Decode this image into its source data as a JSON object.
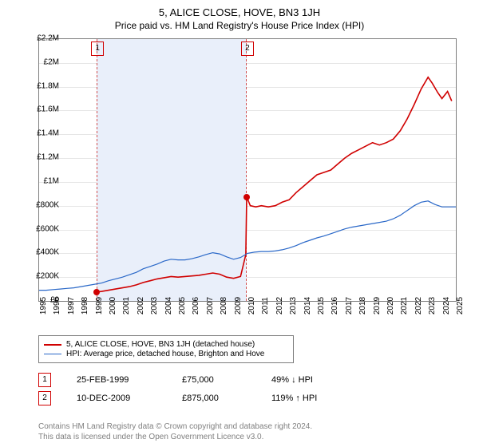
{
  "title": "5, ALICE CLOSE, HOVE, BN3 1JH",
  "subtitle": "Price paid vs. HM Land Registry's House Price Index (HPI)",
  "chart": {
    "type": "line",
    "background_color": "#ffffff",
    "grid_color": "#e6e6e6",
    "border_color": "#7d7d7d",
    "years": [
      1995,
      1996,
      1997,
      1998,
      1999,
      2000,
      2001,
      2002,
      2003,
      2004,
      2005,
      2006,
      2007,
      2008,
      2009,
      2010,
      2011,
      2012,
      2013,
      2014,
      2015,
      2016,
      2017,
      2018,
      2019,
      2020,
      2021,
      2022,
      2023,
      2024,
      2025
    ],
    "ylim": [
      0,
      2200000
    ],
    "ytick_step": 200000,
    "y_tick_labels": [
      "£0",
      "£200K",
      "£400K",
      "£600K",
      "£800K",
      "£1M",
      "£1.2M",
      "£1.4M",
      "£1.6M",
      "£1.8M",
      "£2M",
      "£2.2M"
    ],
    "shaded_region": {
      "start_year": 1999.15,
      "end_year": 2009.94,
      "fill": "#e9effa",
      "border_dash_color": "#d05050"
    },
    "marker_boxes": [
      {
        "label": "1",
        "x_year": 1999.15,
        "border_color": "#d00000"
      },
      {
        "label": "2",
        "x_year": 2009.94,
        "border_color": "#d00000"
      }
    ],
    "series": [
      {
        "name": "price_paid",
        "label": "5, ALICE CLOSE, HOVE, BN3 1JH (detached house)",
        "color": "#d00000",
        "line_width": 1.6,
        "points": [
          {
            "x": 1999.15,
            "y": 75000
          },
          {
            "x": 1999.5,
            "y": 80000
          },
          {
            "x": 2000,
            "y": 90000
          },
          {
            "x": 2000.5,
            "y": 100000
          },
          {
            "x": 2001,
            "y": 110000
          },
          {
            "x": 2001.5,
            "y": 120000
          },
          {
            "x": 2002,
            "y": 135000
          },
          {
            "x": 2002.5,
            "y": 155000
          },
          {
            "x": 2003,
            "y": 170000
          },
          {
            "x": 2003.5,
            "y": 185000
          },
          {
            "x": 2004,
            "y": 195000
          },
          {
            "x": 2004.5,
            "y": 205000
          },
          {
            "x": 2005,
            "y": 200000
          },
          {
            "x": 2005.5,
            "y": 205000
          },
          {
            "x": 2006,
            "y": 210000
          },
          {
            "x": 2006.5,
            "y": 215000
          },
          {
            "x": 2007,
            "y": 225000
          },
          {
            "x": 2007.5,
            "y": 235000
          },
          {
            "x": 2008,
            "y": 225000
          },
          {
            "x": 2008.5,
            "y": 200000
          },
          {
            "x": 2009,
            "y": 190000
          },
          {
            "x": 2009.5,
            "y": 205000
          },
          {
            "x": 2009.88,
            "y": 390000
          },
          {
            "x": 2009.94,
            "y": 875000
          },
          {
            "x": 2010.2,
            "y": 800000
          },
          {
            "x": 2010.6,
            "y": 790000
          },
          {
            "x": 2011,
            "y": 800000
          },
          {
            "x": 2011.5,
            "y": 790000
          },
          {
            "x": 2012,
            "y": 800000
          },
          {
            "x": 2012.5,
            "y": 830000
          },
          {
            "x": 2013,
            "y": 850000
          },
          {
            "x": 2013.5,
            "y": 910000
          },
          {
            "x": 2014,
            "y": 960000
          },
          {
            "x": 2014.5,
            "y": 1010000
          },
          {
            "x": 2015,
            "y": 1060000
          },
          {
            "x": 2015.5,
            "y": 1080000
          },
          {
            "x": 2016,
            "y": 1100000
          },
          {
            "x": 2016.5,
            "y": 1150000
          },
          {
            "x": 2017,
            "y": 1200000
          },
          {
            "x": 2017.5,
            "y": 1240000
          },
          {
            "x": 2018,
            "y": 1270000
          },
          {
            "x": 2018.5,
            "y": 1300000
          },
          {
            "x": 2019,
            "y": 1330000
          },
          {
            "x": 2019.5,
            "y": 1310000
          },
          {
            "x": 2020,
            "y": 1330000
          },
          {
            "x": 2020.5,
            "y": 1360000
          },
          {
            "x": 2021,
            "y": 1430000
          },
          {
            "x": 2021.5,
            "y": 1530000
          },
          {
            "x": 2022,
            "y": 1650000
          },
          {
            "x": 2022.5,
            "y": 1780000
          },
          {
            "x": 2023,
            "y": 1880000
          },
          {
            "x": 2023.3,
            "y": 1830000
          },
          {
            "x": 2023.7,
            "y": 1750000
          },
          {
            "x": 2024,
            "y": 1700000
          },
          {
            "x": 2024.4,
            "y": 1760000
          },
          {
            "x": 2024.7,
            "y": 1680000
          }
        ]
      },
      {
        "name": "hpi",
        "label": "HPI: Average price, detached house, Brighton and Hove",
        "color": "#2a68c8",
        "line_width": 1.2,
        "points": [
          {
            "x": 1995,
            "y": 90000
          },
          {
            "x": 1995.5,
            "y": 90000
          },
          {
            "x": 1996,
            "y": 95000
          },
          {
            "x": 1996.5,
            "y": 100000
          },
          {
            "x": 1997,
            "y": 105000
          },
          {
            "x": 1997.5,
            "y": 110000
          },
          {
            "x": 1998,
            "y": 120000
          },
          {
            "x": 1998.5,
            "y": 130000
          },
          {
            "x": 1999,
            "y": 140000
          },
          {
            "x": 1999.5,
            "y": 150000
          },
          {
            "x": 2000,
            "y": 170000
          },
          {
            "x": 2000.5,
            "y": 185000
          },
          {
            "x": 2001,
            "y": 200000
          },
          {
            "x": 2001.5,
            "y": 220000
          },
          {
            "x": 2002,
            "y": 240000
          },
          {
            "x": 2002.5,
            "y": 270000
          },
          {
            "x": 2003,
            "y": 290000
          },
          {
            "x": 2003.5,
            "y": 310000
          },
          {
            "x": 2004,
            "y": 335000
          },
          {
            "x": 2004.5,
            "y": 350000
          },
          {
            "x": 2005,
            "y": 345000
          },
          {
            "x": 2005.5,
            "y": 345000
          },
          {
            "x": 2006,
            "y": 355000
          },
          {
            "x": 2006.5,
            "y": 370000
          },
          {
            "x": 2007,
            "y": 390000
          },
          {
            "x": 2007.5,
            "y": 405000
          },
          {
            "x": 2008,
            "y": 395000
          },
          {
            "x": 2008.5,
            "y": 370000
          },
          {
            "x": 2009,
            "y": 350000
          },
          {
            "x": 2009.5,
            "y": 365000
          },
          {
            "x": 2010,
            "y": 400000
          },
          {
            "x": 2010.5,
            "y": 410000
          },
          {
            "x": 2011,
            "y": 415000
          },
          {
            "x": 2011.5,
            "y": 415000
          },
          {
            "x": 2012,
            "y": 420000
          },
          {
            "x": 2012.5,
            "y": 430000
          },
          {
            "x": 2013,
            "y": 445000
          },
          {
            "x": 2013.5,
            "y": 465000
          },
          {
            "x": 2014,
            "y": 490000
          },
          {
            "x": 2014.5,
            "y": 510000
          },
          {
            "x": 2015,
            "y": 530000
          },
          {
            "x": 2015.5,
            "y": 545000
          },
          {
            "x": 2016,
            "y": 565000
          },
          {
            "x": 2016.5,
            "y": 585000
          },
          {
            "x": 2017,
            "y": 605000
          },
          {
            "x": 2017.5,
            "y": 620000
          },
          {
            "x": 2018,
            "y": 630000
          },
          {
            "x": 2018.5,
            "y": 640000
          },
          {
            "x": 2019,
            "y": 650000
          },
          {
            "x": 2019.5,
            "y": 660000
          },
          {
            "x": 2020,
            "y": 670000
          },
          {
            "x": 2020.5,
            "y": 690000
          },
          {
            "x": 2021,
            "y": 720000
          },
          {
            "x": 2021.5,
            "y": 760000
          },
          {
            "x": 2022,
            "y": 800000
          },
          {
            "x": 2022.5,
            "y": 830000
          },
          {
            "x": 2023,
            "y": 840000
          },
          {
            "x": 2023.5,
            "y": 810000
          },
          {
            "x": 2024,
            "y": 790000
          },
          {
            "x": 2024.5,
            "y": 790000
          },
          {
            "x": 2025,
            "y": 790000
          }
        ]
      }
    ],
    "sale_dots": [
      {
        "x_year": 1999.15,
        "y": 75000,
        "color": "#d00000"
      },
      {
        "x_year": 2009.94,
        "y": 875000,
        "color": "#d00000"
      }
    ]
  },
  "legend": {
    "rows": [
      {
        "color": "#d00000",
        "width": 2,
        "label": "5, ALICE CLOSE, HOVE, BN3 1JH (detached house)"
      },
      {
        "color": "#2a68c8",
        "width": 1,
        "label": "HPI: Average price, detached house, Brighton and Hove"
      }
    ]
  },
  "sales": [
    {
      "marker": "1",
      "date": "25-FEB-1999",
      "price": "£75,000",
      "vs_hpi": "49% ↓ HPI"
    },
    {
      "marker": "2",
      "date": "10-DEC-2009",
      "price": "£875,000",
      "vs_hpi": "119% ↑ HPI"
    }
  ],
  "footer_line1": "Contains HM Land Registry data © Crown copyright and database right 2024.",
  "footer_line2": "This data is licensed under the Open Government Licence v3.0."
}
